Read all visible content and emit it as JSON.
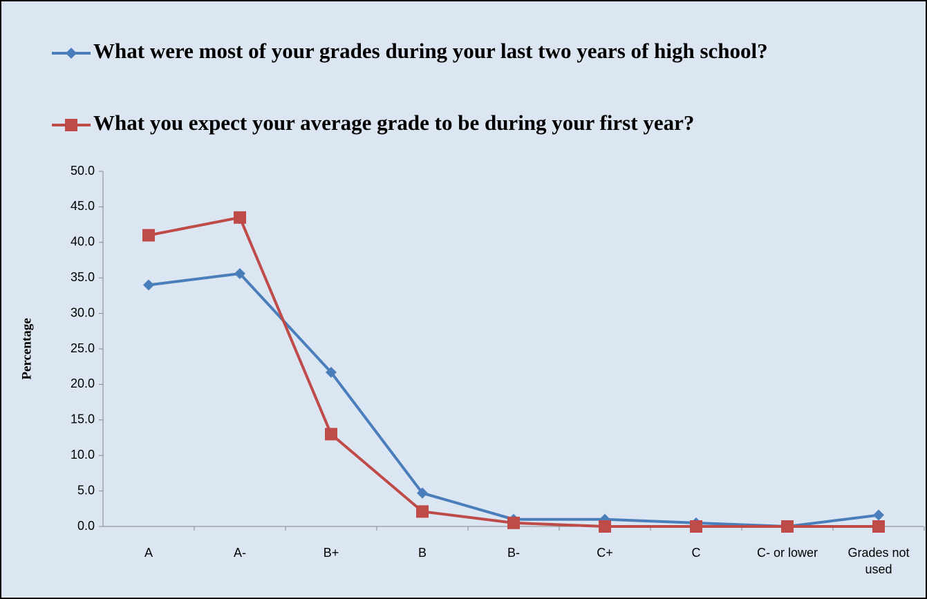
{
  "chart_data": {
    "type": "line",
    "y_label": "Percentage",
    "categories": [
      "A",
      "A-",
      "B+",
      "B",
      "B-",
      "C+",
      "C",
      "C- or lower",
      "Grades not used"
    ],
    "series": [
      {
        "name": "What were most of your grades during your last two years of high school?",
        "color": "#4a7ebb",
        "marker": "diamond",
        "values": [
          34.0,
          35.6,
          21.7,
          4.7,
          1.0,
          1.0,
          0.5,
          0.0,
          1.6
        ]
      },
      {
        "name": "What you expect your average grade to be during your first year?",
        "color": "#be4b48",
        "marker": "square",
        "values": [
          41.0,
          43.5,
          13.0,
          2.1,
          0.5,
          0.0,
          0.0,
          0.0,
          0.0
        ]
      }
    ],
    "ylim": [
      0,
      50
    ],
    "yticks": [
      {
        "value": 0,
        "label": "0.0"
      },
      {
        "value": 5,
        "label": "5.0"
      },
      {
        "value": 10,
        "label": "10.0"
      },
      {
        "value": 15,
        "label": "15.0"
      },
      {
        "value": 20,
        "label": "20.0"
      },
      {
        "value": 25,
        "label": "25.0"
      },
      {
        "value": 30,
        "label": "30.0"
      },
      {
        "value": 35,
        "label": "35.0"
      },
      {
        "value": 40,
        "label": "40.0"
      },
      {
        "value": 45,
        "label": "45.0"
      },
      {
        "value": 50,
        "label": "50.0"
      }
    ],
    "grid": false,
    "legend": "top"
  }
}
